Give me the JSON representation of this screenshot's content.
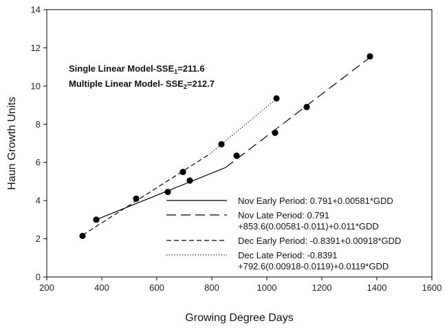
{
  "chart_data": {
    "type": "line",
    "xlabel": "Growing Degree Days",
    "ylabel": "Haun Growth Units",
    "xlim": [
      200,
      1600
    ],
    "ylim": [
      0,
      14
    ],
    "x_ticks": [
      200,
      400,
      600,
      800,
      1000,
      1200,
      1400,
      1600
    ],
    "y_ticks": [
      0,
      2,
      4,
      6,
      8,
      10,
      12,
      14
    ],
    "grid": false,
    "legend_position": "bottom-right",
    "annotations": [
      {
        "prefix": "Single Linear Model-SSE",
        "sub": "1",
        "suffix": "=211.6"
      },
      {
        "prefix": "Multiple Linear Model- SSE",
        "sub": "2",
        "suffix": "=212.7"
      }
    ],
    "points": [
      {
        "x": 330,
        "y": 2.15
      },
      {
        "x": 380,
        "y": 3.0
      },
      {
        "x": 525,
        "y": 4.1
      },
      {
        "x": 640,
        "y": 4.45
      },
      {
        "x": 695,
        "y": 5.5
      },
      {
        "x": 720,
        "y": 5.05
      },
      {
        "x": 835,
        "y": 6.95
      },
      {
        "x": 890,
        "y": 6.35
      },
      {
        "x": 1030,
        "y": 7.55
      },
      {
        "x": 1035,
        "y": 9.35
      },
      {
        "x": 1145,
        "y": 8.9
      },
      {
        "x": 1375,
        "y": 11.55
      }
    ],
    "series": [
      {
        "name": "Nov Early Period: 0.791+0.00581*GDD",
        "legend_lines": [
          "Nov Early Period: 0.791+0.00581*GDD"
        ],
        "dash": "solid",
        "x": [
          380,
          850
        ],
        "y": [
          3.0,
          5.73
        ]
      },
      {
        "name": "Nov Late Period: 0.791 +853.6(0.00581-0.011)+0.011*GDD",
        "legend_lines": [
          "Nov Late Period: 0.791",
          "+853.6(0.00581-0.011)+0.011*GDD"
        ],
        "dash": "longdash",
        "x": [
          850,
          1375
        ],
        "y": [
          5.73,
          11.5
        ]
      },
      {
        "name": "Dec Early Period: -0.8391+0.00918*GDD",
        "legend_lines": [
          "Dec Early Period: -0.8391+0.00918*GDD"
        ],
        "dash": "dash",
        "x": [
          330,
          792.6
        ],
        "y": [
          2.19,
          6.44
        ]
      },
      {
        "name": "Dec Late Period: -0.8391 +792.6(0.00918-0.0119)+0.0119*GDD",
        "legend_lines": [
          "Dec Late Period: -0.8391",
          "+792.6(0.00918-0.0119)+0.0119*GDD"
        ],
        "dash": "dotted",
        "x": [
          792.6,
          1035
        ],
        "y": [
          6.44,
          9.33
        ]
      }
    ]
  }
}
